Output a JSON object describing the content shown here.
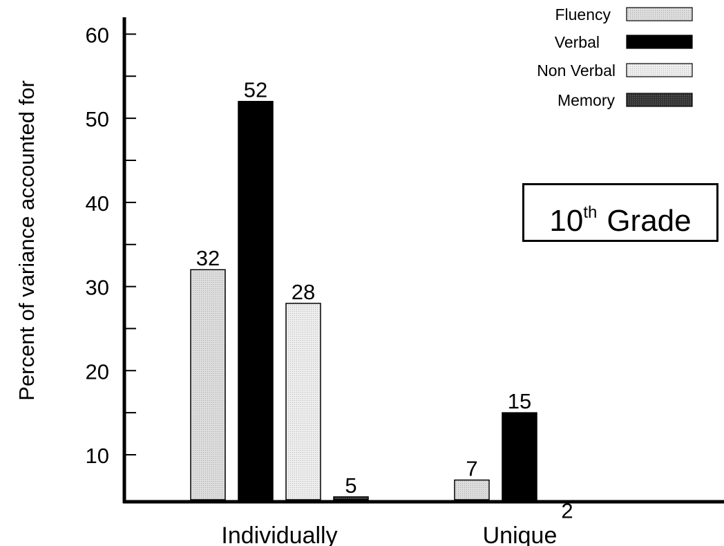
{
  "chart_data": {
    "type": "bar",
    "ylabel": "Percent of variance accounted for",
    "xlabel": "",
    "ylim": [
      4.5,
      62
    ],
    "yticks": [
      10,
      20,
      30,
      40,
      50,
      60
    ],
    "categories": [
      "Individually",
      "Unique"
    ],
    "series": [
      {
        "name": "Fluency",
        "values": [
          32,
          7
        ],
        "labels": [
          "32",
          "7"
        ],
        "color": "#d8d8d8"
      },
      {
        "name": "Verbal",
        "values": [
          52,
          15
        ],
        "labels": [
          "52",
          "15"
        ],
        "color": "#000000"
      },
      {
        "name": "Non Verbal",
        "values": [
          28,
          2
        ],
        "labels": [
          "28",
          "2"
        ],
        "color": "#e6e6e6"
      },
      {
        "name": "Memory",
        "values": [
          5,
          null
        ],
        "labels": [
          "5",
          ""
        ],
        "color": "#3c3c3c"
      }
    ],
    "annotation": {
      "grade_number": "10",
      "grade_suffix": "th",
      "grade_word": "Grade"
    },
    "legend": "top-right",
    "grid": false
  }
}
